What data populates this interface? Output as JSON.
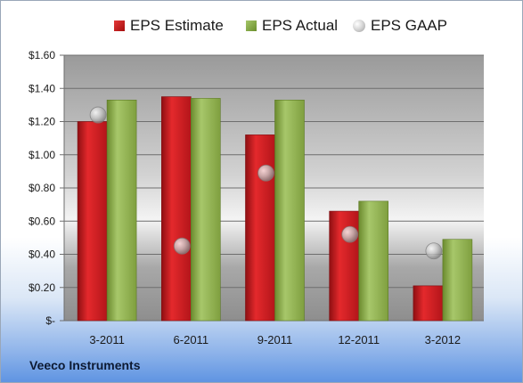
{
  "chart_data": {
    "type": "bar",
    "categories": [
      "3-2011",
      "6-2011",
      "9-2011",
      "12-2011",
      "3-2012"
    ],
    "series": [
      {
        "name": "EPS Estimate",
        "type": "bar",
        "values": [
          1.2,
          1.35,
          1.12,
          0.66,
          0.21
        ]
      },
      {
        "name": "EPS Actual",
        "type": "bar",
        "values": [
          1.33,
          1.34,
          1.33,
          0.72,
          0.49
        ]
      },
      {
        "name": "EPS GAAP",
        "type": "scatter",
        "values": [
          1.24,
          0.45,
          0.89,
          0.52,
          0.42
        ]
      }
    ],
    "ylim": [
      0,
      1.6
    ],
    "yticks": [
      "$-",
      "$0.20",
      "$0.40",
      "$0.60",
      "$0.80",
      "$1.00",
      "$1.20",
      "$1.40",
      "$1.60"
    ],
    "legend_position": "top",
    "grid": true
  },
  "caption": "Veeco Instruments",
  "colors": {
    "estimate": "#c0171b",
    "actual": "#8fb050",
    "gaap": "#b8b8b8"
  }
}
